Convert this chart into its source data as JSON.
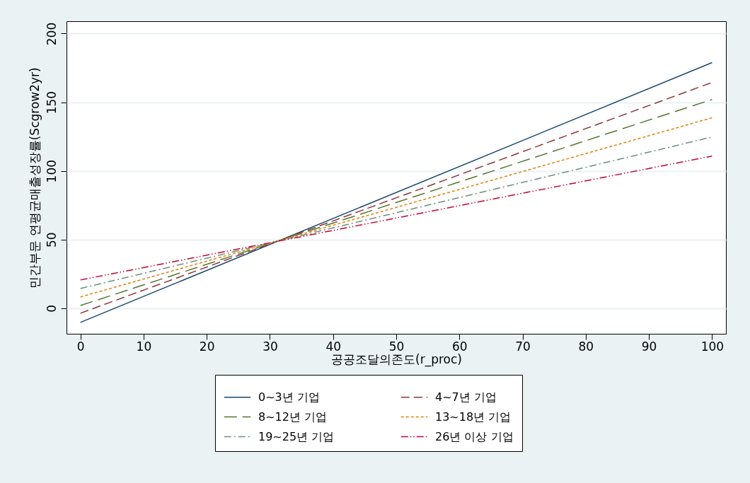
{
  "chart_data": {
    "type": "line",
    "xlabel": "공공조달의존도(r_proc)",
    "ylabel": "민간부문 연평균매출성장률(Scgrow2yr)",
    "x": [
      0,
      100
    ],
    "xlim": [
      -2.2,
      102.2
    ],
    "ylim": [
      -18.6,
      209
    ],
    "xticks": [
      0,
      10,
      20,
      30,
      40,
      50,
      60,
      70,
      80,
      90,
      100
    ],
    "yticks": [
      0,
      50,
      100,
      150,
      200
    ],
    "grid": "y",
    "legend": "bottom",
    "marker": "none",
    "series": [
      {
        "name": "0~3년 기업",
        "color": "#1a476f",
        "line_style": "solid",
        "values": [
          -10.3,
          178.9
        ]
      },
      {
        "name": "4~7년 기업",
        "color": "#90353b",
        "line_style": "dashed",
        "values": [
          -3.6,
          164.4
        ]
      },
      {
        "name": "8~12년 기업",
        "color": "#55752f",
        "line_style": "dashed",
        "values": [
          2,
          152
        ]
      },
      {
        "name": "13~18년 기업",
        "color": "#e37e00",
        "line_style": "dashed",
        "values": [
          8.2,
          138.7
        ]
      },
      {
        "name": "19~25년 기업",
        "color": "#6e8e84",
        "line_style": "dashed",
        "values": [
          14.4,
          124.7
        ]
      },
      {
        "name": "26년 이상 기업",
        "color": "#c10534",
        "line_style": "dotted",
        "values": [
          20.6,
          110.8
        ]
      }
    ]
  }
}
